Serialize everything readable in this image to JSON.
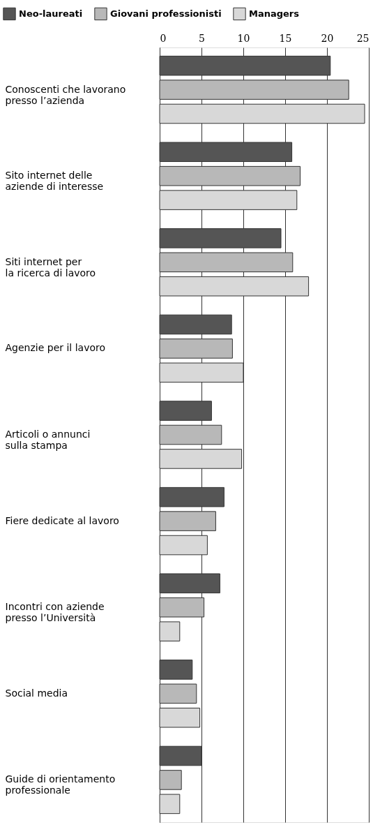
{
  "chart_data": {
    "type": "bar",
    "orientation": "horizontal",
    "categories": [
      "Conoscenti che lavorano\npresso l’azienda",
      "Sito internet delle\naziende di interesse",
      "Siti internet per\nla ricerca di lavoro",
      "Agenzie per il lavoro",
      "Articoli o annunci\nsulla stampa",
      "Fiere dedicate al lavoro",
      "Incontri con aziende\npresso l’Università",
      "Social media",
      "Guide di orientamento\nprofessionale"
    ],
    "series": [
      {
        "name": "Neo-laureati",
        "color": "#555555",
        "values": [
          20.4,
          15.8,
          14.5,
          8.6,
          6.2,
          7.7,
          7.2,
          3.9,
          5.0
        ]
      },
      {
        "name": "Giovani professionisti",
        "color": "#b8b8b8",
        "values": [
          22.6,
          16.8,
          15.9,
          8.7,
          7.4,
          6.7,
          5.3,
          4.4,
          2.6
        ]
      },
      {
        "name": "Managers",
        "color": "#d8d8d8",
        "values": [
          24.5,
          16.4,
          17.8,
          10.0,
          9.8,
          5.7,
          2.4,
          4.8,
          2.4
        ]
      }
    ],
    "xlim": [
      0,
      25
    ],
    "xticks": [
      0,
      5,
      10,
      15,
      20,
      25
    ],
    "grid": "x",
    "legend": "top left"
  }
}
